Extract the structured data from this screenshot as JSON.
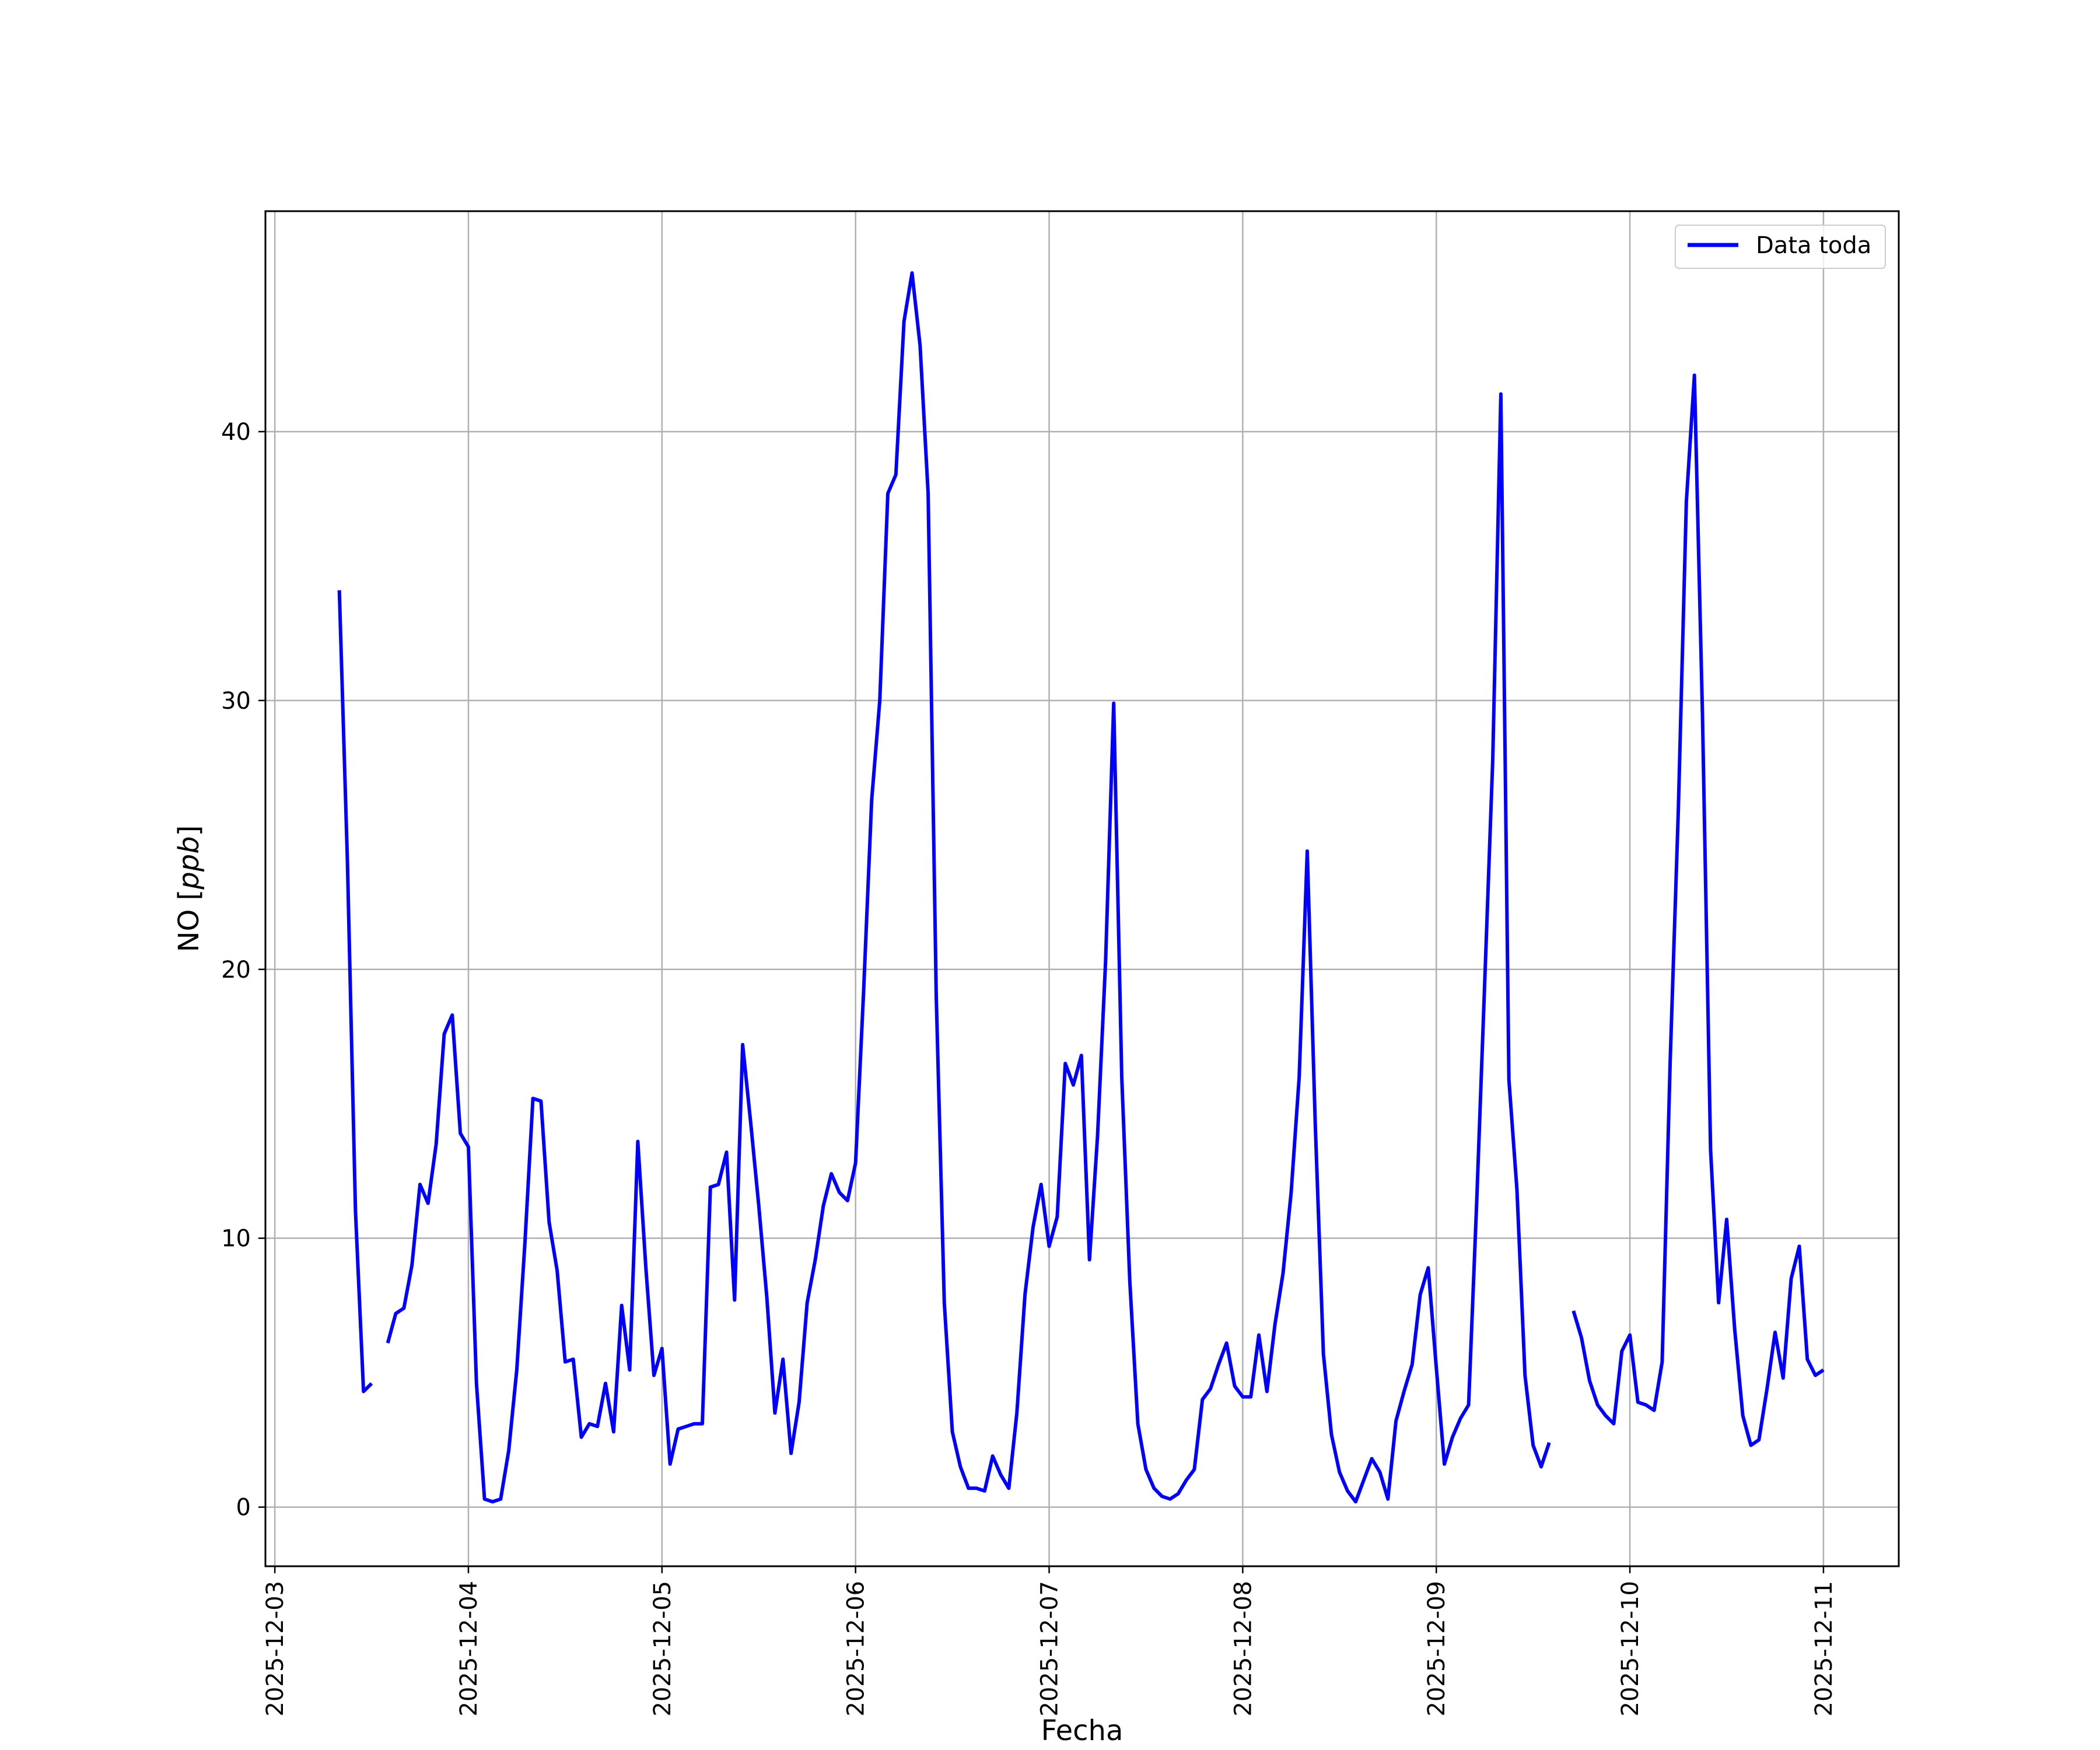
{
  "chart_data": {
    "type": "line",
    "xlabel": "Fecha",
    "ylabel_text": "NO [",
    "ylabel_unit": "ppb",
    "ylabel_close": "]",
    "x_ticks": [
      "2025-12-03",
      "2025-12-04",
      "2025-12-05",
      "2025-12-06",
      "2025-12-07",
      "2025-12-08",
      "2025-12-09",
      "2025-12-10",
      "2025-12-11"
    ],
    "y_ticks": [
      0,
      10,
      20,
      30,
      40
    ],
    "xlim": [
      "2025-12-02T22:50",
      "2025-12-11T09:20"
    ],
    "ylim": [
      -2.2,
      48.2
    ],
    "grid": true,
    "legend_position": "top-right",
    "series": [
      {
        "name": "Data toda",
        "color": "#0000ff",
        "start": "2025-12-03T08:00",
        "interval_hours": 1,
        "values": [
          34.1,
          24,
          11,
          4.3,
          4.6,
          null,
          6.1,
          7.2,
          7.4,
          9,
          12,
          11.3,
          13.5,
          17.6,
          18.3,
          13.9,
          13.4,
          4.6,
          0.3,
          0.2,
          0.3,
          2.1,
          5.1,
          9.8,
          15.2,
          15.1,
          10.6,
          8.8,
          5.4,
          5.5,
          2.6,
          3.1,
          3.0,
          4.6,
          2.8,
          7.5,
          5.1,
          13.6,
          8.9,
          4.9,
          5.9,
          1.6,
          2.9,
          3.0,
          3.1,
          3.1,
          11.9,
          12.0,
          13.2,
          7.7,
          17.2,
          14.3,
          11.2,
          7.8,
          3.5,
          5.5,
          2.0,
          3.9,
          7.6,
          9.2,
          11.2,
          12.4,
          11.7,
          11.4,
          12.8,
          19.2,
          26.3,
          30.0,
          37.7,
          38.4,
          44.1,
          45.9,
          43.2,
          37.7,
          19.0,
          7.6,
          2.8,
          1.5,
          0.7,
          0.7,
          0.6,
          1.9,
          1.2,
          0.7,
          3.5,
          7.9,
          10.4,
          12.0,
          9.7,
          10.8,
          16.5,
          15.7,
          16.8,
          9.2,
          13.8,
          20.3,
          29.9,
          16.0,
          8.4,
          3.1,
          1.4,
          0.7,
          0.4,
          0.3,
          0.5,
          1.0,
          1.4,
          4.0,
          4.4,
          5.3,
          6.1,
          4.5,
          4.1,
          4.1,
          6.4,
          4.3,
          6.8,
          8.7,
          11.7,
          16.0,
          24.4,
          14.2,
          5.7,
          2.7,
          1.3,
          0.6,
          0.2,
          1.0,
          1.8,
          1.3,
          0.3,
          3.2,
          4.3,
          5.3,
          7.9,
          8.9,
          5.2,
          1.6,
          2.6,
          3.3,
          3.8,
          11.3,
          19.5,
          27.8,
          41.4,
          15.9,
          11.8,
          4.9,
          2.3,
          1.5,
          2.4,
          null,
          null,
          7.3,
          6.3,
          4.7,
          3.8,
          3.4,
          3.1,
          5.8,
          6.4,
          3.9,
          3.8,
          3.6,
          5.4,
          16.6,
          25.9,
          37.4,
          42.1,
          29.5,
          13.3,
          7.6,
          10.7,
          6.6,
          3.4,
          2.3,
          2.5,
          4.4,
          6.5,
          4.8,
          8.5,
          9.7,
          5.5,
          4.9,
          5.1
        ]
      }
    ]
  }
}
